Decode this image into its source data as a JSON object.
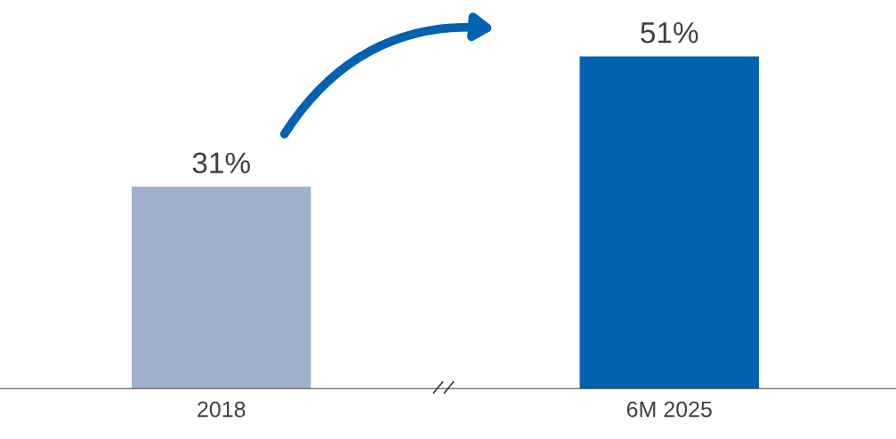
{
  "chart_data": {
    "type": "bar",
    "categories": [
      "2018",
      "6M 2025"
    ],
    "values": [
      31,
      51
    ],
    "value_labels": [
      "31%",
      "51%"
    ],
    "colors": [
      "#a0b1cf",
      "#0062b0"
    ],
    "grid": false,
    "legend": false
  }
}
